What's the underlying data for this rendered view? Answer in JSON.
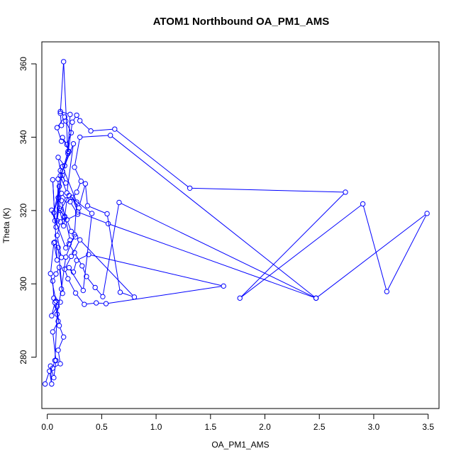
{
  "chart_data": {
    "type": "scatter",
    "title": "ATOM1 Northbound OA_PM1_AMS",
    "xlabel": "OA_PM1_AMS",
    "ylabel": "Theta (K)",
    "xlim": [
      -0.05,
      3.6
    ],
    "ylim": [
      266,
      366
    ],
    "xticks": [
      0.0,
      0.5,
      1.0,
      1.5,
      2.0,
      2.5,
      3.0,
      3.5
    ],
    "xtick_labels": [
      "0.0",
      "0.5",
      "1.0",
      "1.5",
      "2.0",
      "2.5",
      "3.0",
      "3.5"
    ],
    "yticks": [
      280,
      300,
      320,
      340,
      360
    ],
    "ytick_labels": [
      "280",
      "300",
      "320",
      "340",
      "360"
    ],
    "grid": false,
    "legend": "none",
    "connected": true,
    "color": "#0000ff",
    "series": [
      {
        "x": [
          -0.02,
          0.02,
          0.04,
          0.03,
          0.06,
          0.08,
          0.05,
          0.1,
          0.07,
          0.04,
          0.09,
          0.12,
          0.06,
          0.05,
          0.08,
          0.11,
          0.14,
          0.1,
          0.07,
          0.13,
          0.09,
          0.12,
          0.16,
          0.11,
          0.15,
          0.18,
          0.13,
          0.09,
          0.1,
          0.14,
          0.17,
          0.12,
          0.1,
          0.16,
          0.2,
          0.14,
          0.18,
          0.22,
          0.17,
          0.13,
          0.12,
          0.15,
          0.19,
          0.23,
          0.27,
          0.3,
          0.4,
          0.62,
          1.31,
          2.74,
          1.77,
          2.9,
          3.12,
          3.49,
          2.47,
          0.58,
          0.3,
          0.25,
          0.31,
          0.27,
          0.21,
          0.28,
          0.18,
          0.22,
          0.26,
          0.2,
          0.25,
          0.32,
          0.36,
          0.44,
          0.51,
          0.66,
          2.47,
          0.56,
          0.28,
          0.23,
          0.29,
          0.35,
          0.37,
          0.55,
          0.67,
          0.8,
          0.3,
          0.22,
          0.16,
          0.19,
          0.26,
          0.34,
          0.45,
          0.54,
          1.62,
          0.38,
          0.27,
          0.24,
          0.2,
          0.33,
          0.41,
          0.2,
          0.12,
          0.16,
          0.13,
          0.21,
          0.17,
          0.04,
          0.07,
          0.05,
          0.09,
          0.06,
          0.03,
          0.08,
          0.11,
          0.15,
          0.1,
          0.12,
          0.05,
          0.07,
          0.09,
          0.13,
          0.17,
          0.25,
          0.27,
          0.14,
          0.08,
          0.11,
          0.06,
          0.1,
          0.12,
          0.18,
          0.24,
          0.14,
          0.19,
          0.21,
          0.12,
          0.16,
          0.09,
          0.13
        ],
        "y": [
          272.7,
          276.2,
          272.7,
          277.6,
          274.4,
          279.1,
          286.9,
          289.8,
          294.9,
          291.3,
          293.8,
          295.0,
          296.1,
          300.8,
          302.7,
          304.5,
          297.4,
          309.9,
          311.4,
          307.2,
          313.2,
          316.9,
          318.1,
          320.6,
          315.8,
          322.9,
          324.7,
          317.2,
          328.6,
          329.6,
          327.5,
          330.9,
          334.5,
          332.2,
          336.1,
          339.9,
          338.0,
          341.2,
          344.4,
          343.2,
          346.5,
          360.6,
          335.5,
          344.1,
          346.0,
          344.5,
          341.7,
          342.2,
          326.1,
          325.0,
          296.1,
          321.8,
          297.9,
          319.2,
          296.1,
          340.5,
          340.0,
          331.8,
          328.0,
          325.0,
          322.4,
          319.0,
          317.5,
          314.3,
          312.8,
          310.9,
          308.5,
          304.9,
          302.0,
          299.0,
          296.5,
          322.2,
          296.1,
          316.4,
          319.6,
          323.6,
          320.7,
          327.3,
          321.3,
          319.1,
          297.7,
          296.4,
          312.0,
          307.5,
          304.0,
          301.4,
          297.5,
          294.4,
          294.8,
          294.6,
          299.4,
          308.0,
          306.4,
          303.2,
          304.4,
          298.2,
          319.2,
          324.1,
          320.0,
          318.4,
          322.7,
          311.9,
          309.8,
          320.1,
          317.2,
          328.4,
          306.5,
          311.2,
          302.8,
          295.3,
          288.6,
          285.5,
          281.9,
          278.2,
          277.0,
          279.1,
          291.7,
          298.6,
          307.3,
          313.4,
          322.3,
          332.0,
          315.5,
          326.6,
          319.4,
          323.5,
          329.5,
          324.8,
          338.2,
          330.7,
          336.1,
          346.2,
          347.0,
          345.5,
          342.6,
          338.9
        ]
      }
    ]
  }
}
